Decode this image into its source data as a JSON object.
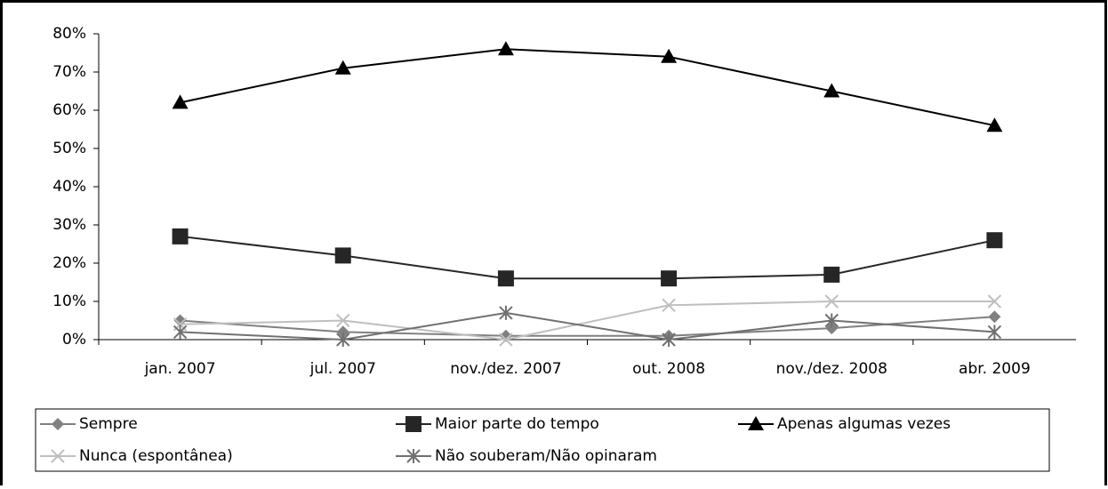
{
  "chart_data": {
    "type": "line",
    "categories": [
      "jan. 2007",
      "jul. 2007",
      "nov./dez. 2007",
      "out. 2008",
      "nov./dez. 2008",
      "abr. 2009"
    ],
    "series": [
      {
        "name": "Sempre",
        "color": "#808080",
        "marker": "diamond",
        "values": [
          5,
          2,
          1,
          1,
          3,
          6
        ]
      },
      {
        "name": "Maior parte do tempo",
        "color": "#262626",
        "marker": "square",
        "values": [
          27,
          22,
          16,
          16,
          17,
          26
        ]
      },
      {
        "name": "Apenas algumas vezes",
        "color": "#000000",
        "marker": "triangle",
        "values": [
          62,
          71,
          76,
          74,
          65,
          56
        ]
      },
      {
        "name": "Nunca (espontânea)",
        "color": "#bfbfbf",
        "marker": "x",
        "values": [
          4,
          5,
          0,
          9,
          10,
          10
        ]
      },
      {
        "name": "Não souberam/Não opinaram",
        "color": "#707070",
        "marker": "star",
        "values": [
          2,
          0,
          7,
          0,
          5,
          2
        ]
      }
    ],
    "ylim": [
      0,
      80
    ],
    "yticks": [
      {
        "value": 0,
        "label": "0%"
      },
      {
        "value": 10,
        "label": "10%"
      },
      {
        "value": 20,
        "label": "20%"
      },
      {
        "value": 30,
        "label": "30%"
      },
      {
        "value": 40,
        "label": "40%"
      },
      {
        "value": 50,
        "label": "50%"
      },
      {
        "value": 60,
        "label": "60%"
      },
      {
        "value": 70,
        "label": "70%"
      },
      {
        "value": 80,
        "label": "80%"
      }
    ],
    "grid": false,
    "legend": "bottom"
  }
}
